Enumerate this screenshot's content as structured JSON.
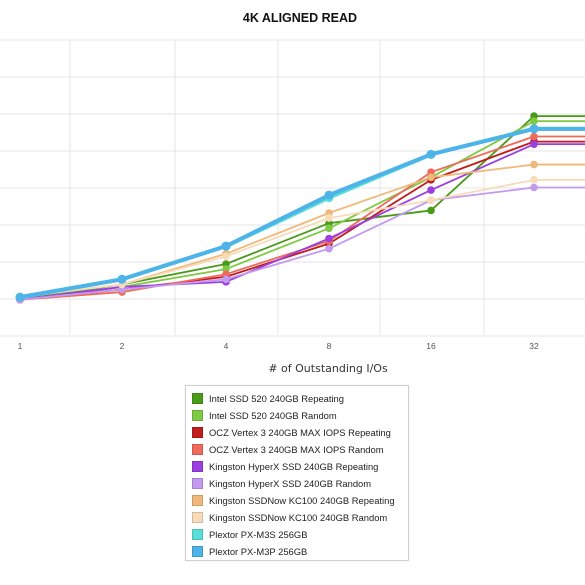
{
  "chart_data": {
    "type": "line",
    "title": "4K ALIGNED READ",
    "xlabel": "# of Outstanding I/Os",
    "ylabel": "",
    "categories": [
      "1",
      "2",
      "4",
      "8",
      "16",
      "32"
    ],
    "x_scale": "log2",
    "ylim": [
      0,
      100
    ],
    "grid": true,
    "legend_position": "bottom-center",
    "series": [
      {
        "name": "Intel SSD 520 240GB Repeating",
        "color": "#4a9a1a",
        "values": [
          6,
          12,
          20,
          36,
          41,
          78
        ]
      },
      {
        "name": "Intel SSD 520 240GB Random",
        "color": "#7fc943",
        "values": [
          6,
          11,
          18,
          34,
          54,
          76
        ]
      },
      {
        "name": "OCZ Vertex 3 240GB MAX IOPS Repeating",
        "color": "#c21b1b",
        "values": [
          6,
          10,
          15,
          28,
          53,
          68
        ]
      },
      {
        "name": "OCZ Vertex 3 240GB MAX IOPS Random",
        "color": "#ef6a5a",
        "values": [
          6,
          9,
          16,
          29,
          56,
          70
        ]
      },
      {
        "name": "Kingston HyperX SSD 240GB Repeating",
        "color": "#9b3fe0",
        "values": [
          6,
          11,
          13,
          30,
          49,
          67
        ]
      },
      {
        "name": "Kingston HyperX SSD 240GB Random",
        "color": "#c29af0",
        "values": [
          6,
          10,
          14,
          26,
          45,
          50
        ]
      },
      {
        "name": "Kingston SSDNow KC100 240GB Repeating",
        "color": "#f0b879",
        "values": [
          7,
          12,
          24,
          40,
          54,
          59
        ]
      },
      {
        "name": "Kingston SSDNow KC100 240GB Random",
        "color": "#f8dbb8",
        "values": [
          7,
          12,
          23,
          38,
          45,
          53
        ]
      },
      {
        "name": "Plextor PX-M3S 256GB",
        "color": "#58e0d8",
        "values": [
          7,
          14,
          27,
          46,
          63,
          73
        ]
      },
      {
        "name": "Plextor PX-M3P 256GB",
        "color": "#4db3e8",
        "values": [
          7,
          14,
          27,
          47,
          63,
          73
        ]
      }
    ]
  }
}
